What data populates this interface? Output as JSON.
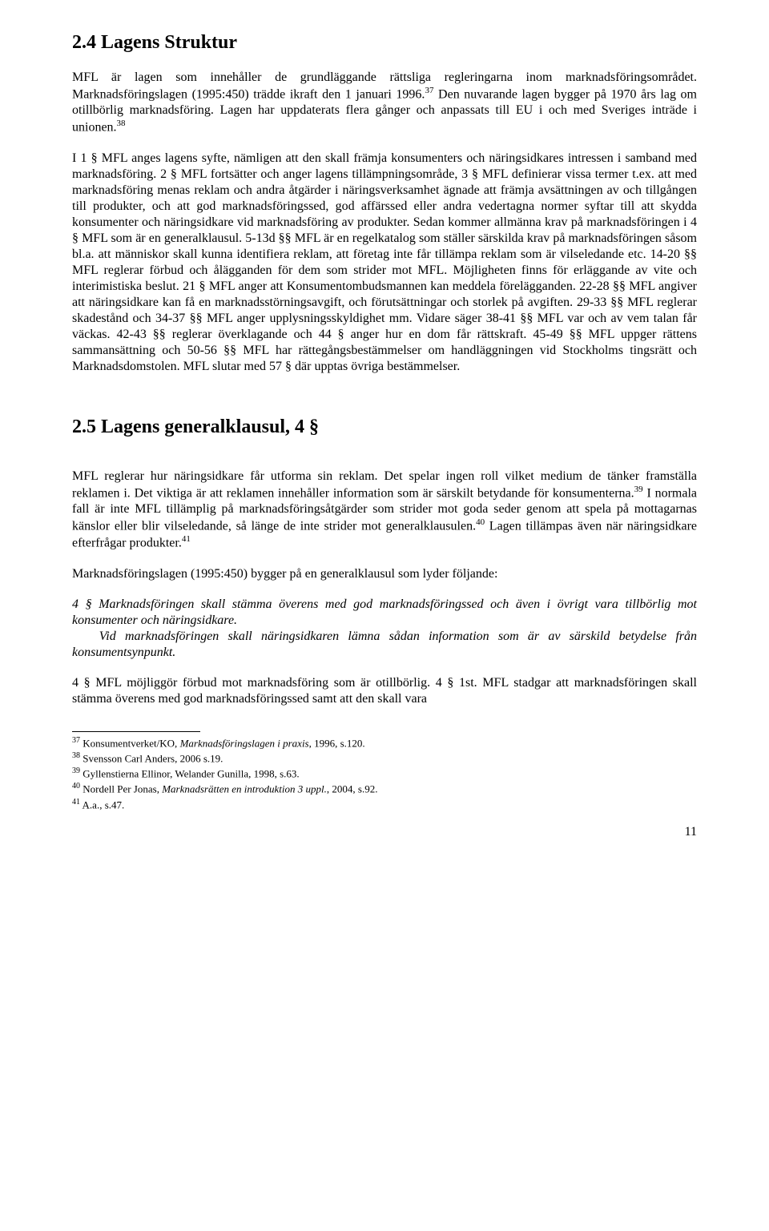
{
  "s24": {
    "title": "2.4 Lagens Struktur",
    "p1_html": "MFL är lagen som innehåller de grundläggande rättsliga regleringarna inom marknadsföringsområdet. Marknadsföringslagen (1995:450) trädde ikraft den 1 januari 1996.<sup>37</sup> Den nuvarande lagen bygger på 1970 års lag om otillbörlig marknadsföring. Lagen har uppdaterats flera gånger och anpassats till EU i och med Sveriges inträde i unionen.<sup>38</sup>",
    "p2": "I 1 § MFL anges lagens syfte, nämligen att den skall främja konsumenters och näringsidkares intressen i samband med marknadsföring. 2 § MFL fortsätter och anger lagens tillämpningsområde, 3 § MFL definierar vissa termer t.ex. att med marknadsföring menas reklam och andra åtgärder i näringsverksamhet ägnade att främja avsättningen av och tillgången till produkter, och att god marknadsföringssed, god affärssed eller andra vedertagna normer syftar till att skydda konsumenter och näringsidkare vid marknadsföring av produkter. Sedan kommer allmänna krav på marknadsföringen i 4 § MFL som är en generalklausul. 5-13d §§ MFL är en regelkatalog som ställer särskilda krav på marknadsföringen såsom bl.a. att människor skall kunna identifiera reklam, att företag inte får tillämpa reklam som är vilseledande etc. 14-20 §§ MFL reglerar förbud och ålägganden för dem som strider mot MFL. Möjligheten finns för erläggande av vite och interimistiska beslut. 21 § MFL anger att Konsumentombudsmannen kan meddela förelägganden. 22-28 §§ MFL angiver att näringsidkare kan få en marknadsstörningsavgift, och förutsättningar och storlek på avgiften. 29-33 §§ MFL reglerar skadestånd och 34-37 §§ MFL anger upplysningsskyldighet mm. Vidare säger 38-41 §§ MFL var och av vem talan får väckas. 42-43 §§ reglerar överklagande och 44 § anger hur en dom får rättskraft. 45-49 §§ MFL uppger rättens sammansättning och 50-56 §§ MFL har rättegångsbestämmelser om handläggningen vid Stockholms tingsrätt och Marknadsdomstolen. MFL slutar med 57 § där upptas övriga bestämmelser."
  },
  "s25": {
    "title": "2.5 Lagens generalklausul, 4 §",
    "p1_html": "MFL reglerar hur näringsidkare får utforma sin reklam. Det spelar ingen roll vilket medium de tänker framställa reklamen i. Det viktiga är att reklamen innehåller information som är särskilt betydande för konsumenterna.<sup>39</sup> I normala fall är inte MFL tillämplig på marknadsföringsåtgärder som strider mot goda seder genom att spela på mottagarnas känslor eller blir vilseledande, så länge de inte strider mot generalklausulen.<sup>40</sup> Lagen tillämpas även när näringsidkare efterfrågar produkter.<sup>41</sup>",
    "p2": "Marknadsföringslagen (1995:450) bygger på en generalklausul som lyder följande:",
    "quote": "4 § Marknadsföringen skall stämma överens med god marknadsföringssed och även i övrigt vara tillbörlig mot konsumenter och näringsidkare.\n   Vid marknadsföringen skall näringsidkaren lämna sådan information som är av särskild betydelse från konsumentsynpunkt.",
    "p3": "4 § MFL möjliggör förbud mot marknadsföring som är otillbörlig. 4 § 1st. MFL stadgar att marknadsföringen skall stämma överens med god marknadsföringssed samt att den skall vara"
  },
  "footnotes": [
    {
      "num": "37",
      "text_html": "Konsumentverket/KO, <span class=\"fn-italic\">Marknadsföringslagen i praxis</span>, 1996, s.120."
    },
    {
      "num": "38",
      "text_html": "Svensson Carl Anders, 2006 s.19."
    },
    {
      "num": "39",
      "text_html": "Gyllenstierna Ellinor, Welander Gunilla<span class=\"fn-italic\">,</span> 1998, s.63."
    },
    {
      "num": "40",
      "text_html": "Nordell Per Jonas<span class=\"fn-italic\">, Marknadsrätten en introduktion 3 uppl.</span>, 2004, s.92."
    },
    {
      "num": "41",
      "text_html": "A.a., s.47."
    }
  ],
  "page_number": "11"
}
